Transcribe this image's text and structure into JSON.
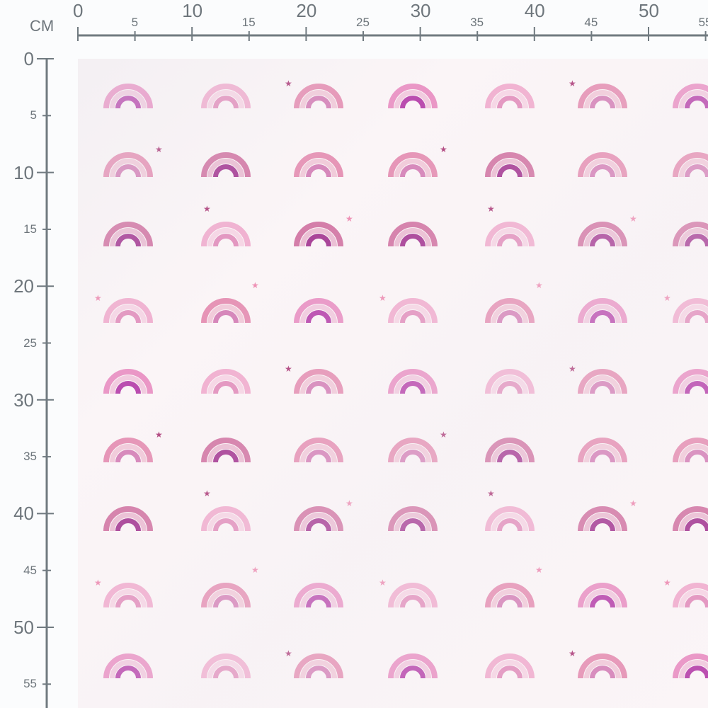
{
  "ruler": {
    "unit": "CM",
    "top_labels": [
      "0",
      "5",
      "10",
      "15",
      "20",
      "25",
      "30",
      "35",
      "40",
      "45",
      "50",
      "55"
    ],
    "left_labels": [
      "0",
      "5",
      "10",
      "15",
      "20",
      "25",
      "30",
      "35",
      "40",
      "45",
      "50",
      "55"
    ],
    "color": "#707a80"
  },
  "fabric": {
    "background": "#fbf5f7",
    "motif": "rainbow",
    "accent_icon": "star-icon",
    "palettes": {
      "A": [
        "#e88cc0",
        "#f0c6dc",
        "#b23aa6"
      ],
      "B": [
        "#efa9cb",
        "#f5d3e2",
        "#e08ab8"
      ],
      "C": [
        "#e38aae",
        "#f0c6d6",
        "#d27ab2"
      ],
      "D": [
        "#cf6f9f",
        "#e9b9cf",
        "#9e2d8c"
      ]
    },
    "star_colors": [
      "#b0457f",
      "#ee8fb4"
    ],
    "tile": [
      [
        {
          "p": "A"
        },
        {
          "p": "B"
        },
        {
          "p": "C",
          "star": "left",
          "sc": 0
        }
      ],
      [
        {
          "p": "C",
          "star": "right",
          "sc": 0
        },
        {
          "p": "D"
        },
        {
          "p": "C"
        }
      ],
      [
        {
          "p": "D"
        },
        {
          "p": "B",
          "star": "topleft",
          "sc": 0
        },
        {
          "p": "D",
          "star": "right",
          "sc": 1
        }
      ],
      [
        {
          "p": "B",
          "star": "left",
          "sc": 1
        },
        {
          "p": "C",
          "star": "topright",
          "sc": 1
        },
        {
          "p": "A"
        }
      ]
    ]
  }
}
